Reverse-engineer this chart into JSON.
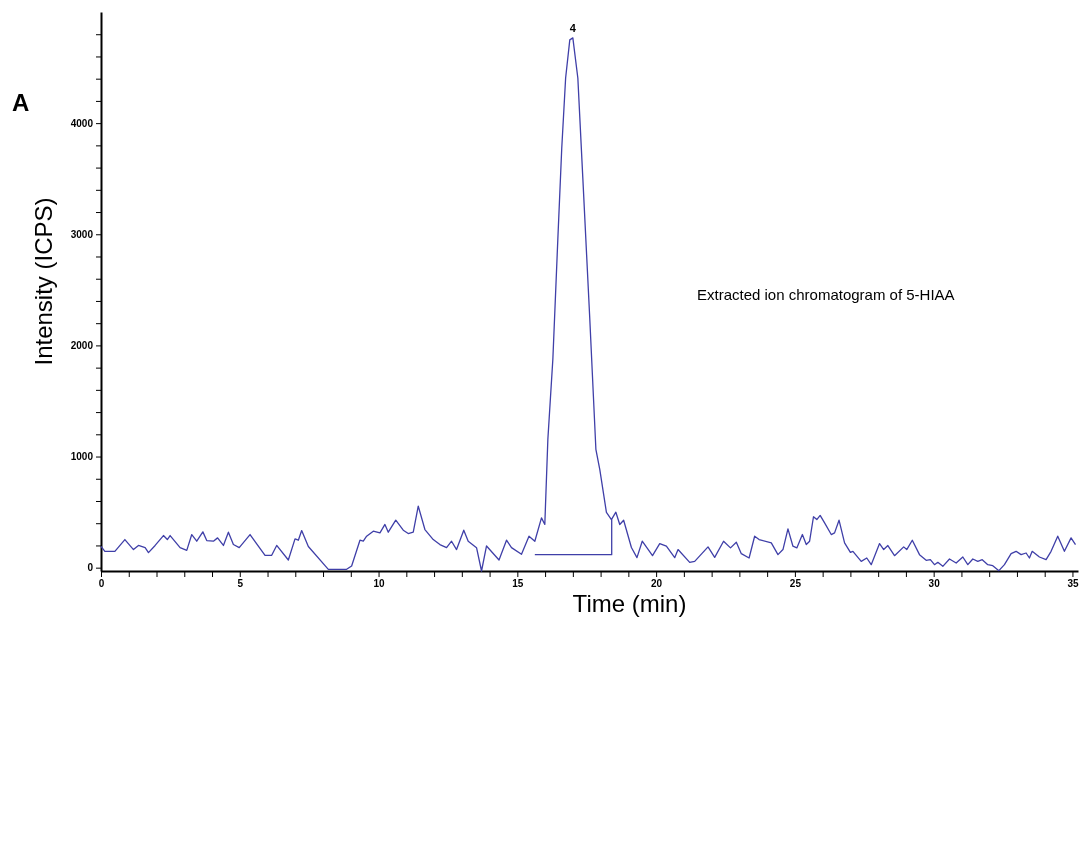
{
  "chart_data": {
    "type": "line",
    "xlabel": "Time (min)",
    "ylabel": "Intensity (ICPS)",
    "annotations": [
      "A",
      "Extracted ion chromatogram of 5-HIAA",
      {
        "text": "4",
        "x": 17.0,
        "y": 4767
      }
    ],
    "xlim": [
      0,
      35.2
    ],
    "ylim": [
      -30,
      5000
    ],
    "xticks": [
      0,
      {
        "value": 1,
        "label": null
      },
      {
        "value": 2,
        "label": null
      },
      {
        "value": 3,
        "label": null
      },
      {
        "value": 4,
        "label": null
      },
      5,
      {
        "value": 6,
        "label": null
      },
      {
        "value": 7,
        "label": null
      },
      {
        "value": 8,
        "label": null
      },
      {
        "value": 9,
        "label": null
      },
      10,
      {
        "value": 11,
        "label": null
      },
      {
        "value": 12,
        "label": null
      },
      {
        "value": 13,
        "label": null
      },
      {
        "value": 14,
        "label": null
      },
      15,
      {
        "value": 16,
        "label": null
      },
      {
        "value": 17,
        "label": null
      },
      {
        "value": 18,
        "label": null
      },
      {
        "value": 19,
        "label": null
      },
      20,
      {
        "value": 21,
        "label": null
      },
      {
        "value": 22,
        "label": null
      },
      {
        "value": 23,
        "label": null
      },
      {
        "value": 24,
        "label": null
      },
      25,
      {
        "value": 26,
        "label": null
      },
      {
        "value": 27,
        "label": null
      },
      {
        "value": 28,
        "label": null
      },
      {
        "value": 29,
        "label": null
      },
      30,
      {
        "value": 31,
        "label": null
      },
      {
        "value": 32,
        "label": null
      },
      {
        "value": 33,
        "label": null
      },
      {
        "value": 34,
        "label": null
      },
      35
    ],
    "yticks": [
      0,
      {
        "value": 200,
        "label": null
      },
      {
        "value": 400,
        "label": null
      },
      {
        "value": 600,
        "label": null
      },
      {
        "value": 800,
        "label": null
      },
      1000,
      {
        "value": 1200,
        "label": null
      },
      {
        "value": 1400,
        "label": null
      },
      {
        "value": 1600,
        "label": null
      },
      {
        "value": 1800,
        "label": null
      },
      2000,
      {
        "value": 2200,
        "label": null
      },
      {
        "value": 2400,
        "label": null
      },
      {
        "value": 2600,
        "label": null
      },
      {
        "value": 2800,
        "label": null
      },
      3000,
      {
        "value": 3200,
        "label": null
      },
      {
        "value": 3400,
        "label": null
      },
      {
        "value": 3600,
        "label": null
      },
      {
        "value": 3800,
        "label": null
      },
      4000,
      {
        "value": 4200,
        "label": null
      },
      {
        "value": 4400,
        "label": null
      },
      {
        "value": 4600,
        "label": null
      },
      {
        "value": 4800,
        "label": null
      }
    ],
    "grid": false,
    "marker": "none",
    "line_style": "solid",
    "series": [
      {
        "color": "#3f3fa8",
        "x": [
          0,
          0.14,
          0.5,
          0.86,
          1.17,
          1.35,
          1.59,
          1.71,
          1.95,
          2.25,
          2.39,
          2.49,
          2.85,
          3.09,
          3.27,
          3.45,
          3.67,
          3.81,
          4.05,
          4.2,
          4.41,
          4.59,
          4.77,
          4.98,
          5.37,
          5.91,
          6.15,
          6.33,
          6.75,
          6.99,
          7.11,
          7.23,
          7.47,
          8.19,
          8.85,
          9.03,
          9.33,
          9.45,
          9.57,
          9.81,
          10.05,
          10.23,
          10.35,
          10.62,
          10.89,
          11.07,
          11.25,
          11.43,
          11.67,
          11.97,
          12.21,
          12.45,
          12.63,
          12.81,
          13.07,
          13.23,
          13.53,
          13.71,
          13.89,
          14.34,
          14.61,
          14.79,
          15.15,
          15.42,
          15.63,
          15.87,
          15.99,
          16.1,
          16.28,
          16.46,
          16.6,
          16.74,
          16.89,
          17.0,
          17.18,
          17.36,
          17.61,
          17.83,
          17.97,
          18.21,
          18.39,
          18.55,
          18.69,
          18.83,
          19.11,
          19.31,
          19.5,
          19.87,
          20.13,
          20.37,
          20.67,
          20.79,
          21.21,
          21.39,
          21.87,
          22.11,
          22.43,
          22.68,
          22.89,
          23.07,
          23.35,
          23.55,
          23.71,
          24.15,
          24.39,
          24.57,
          24.75,
          24.93,
          25.07,
          25.27,
          25.41,
          25.53,
          25.67,
          25.79,
          25.91,
          26.07,
          26.31,
          26.43,
          26.59,
          26.79,
          27.0,
          27.09,
          27.39,
          27.59,
          27.75,
          28.05,
          28.2,
          28.35,
          28.59,
          28.92,
          29.03,
          29.23,
          29.49,
          29.73,
          29.88,
          30.03,
          30.15,
          30.33,
          30.57,
          30.81,
          31.05,
          31.23,
          31.41,
          31.59,
          31.75,
          31.95,
          32.13,
          32.35,
          32.55,
          32.79,
          32.97,
          33.15,
          33.33,
          33.45,
          33.55,
          33.81,
          34.05,
          34.23,
          34.47,
          34.71,
          34.95,
          35.11
        ],
        "values": [
          192,
          147,
          147,
          253,
          163,
          200,
          180,
          135,
          200,
          289,
          253,
          289,
          180,
          156,
          298,
          238,
          322,
          244,
          238,
          268,
          200,
          319,
          208,
          180,
          298,
          111,
          111,
          200,
          69,
          259,
          247,
          334,
          190,
          -15,
          -15,
          15,
          247,
          238,
          283,
          328,
          313,
          389,
          319,
          427,
          337,
          307,
          319,
          554,
          343,
          253,
          208,
          180,
          238,
          163,
          337,
          238,
          180,
          -30,
          195,
          69,
          247,
          180,
          120,
          283,
          238,
          448,
          389,
          1156,
          1878,
          2961,
          3774,
          4406,
          4749,
          4767,
          4406,
          3503,
          2239,
          1065,
          885,
          497,
          433,
          499,
          388,
          427,
          181,
          90,
          238,
          108,
          217,
          193,
          90,
          163,
          48,
          57,
          187,
          93,
          238,
          178,
          229,
          126,
          87,
          283,
          253,
          223,
          117,
          163,
          349,
          193,
          178,
          298,
          208,
          238,
          458,
          433,
          470,
          403,
          298,
          313,
          427,
          223,
          138,
          147,
          57,
          87,
          27,
          217,
          163,
          199,
          108,
          187,
          163,
          247,
          117,
          66,
          72,
          27,
          48,
          12,
          78,
          42,
          96,
          27,
          78,
          57,
          72,
          27,
          18,
          -27,
          27,
          126,
          147,
          117,
          132,
          87,
          147,
          96,
          72,
          147,
          283,
          147,
          268,
          208
        ]
      },
      {
        "color": "#3f3fa8",
        "x": [
          15.63,
          18.4,
          18.4
        ],
        "values": [
          117,
          117,
          433
        ]
      }
    ]
  }
}
